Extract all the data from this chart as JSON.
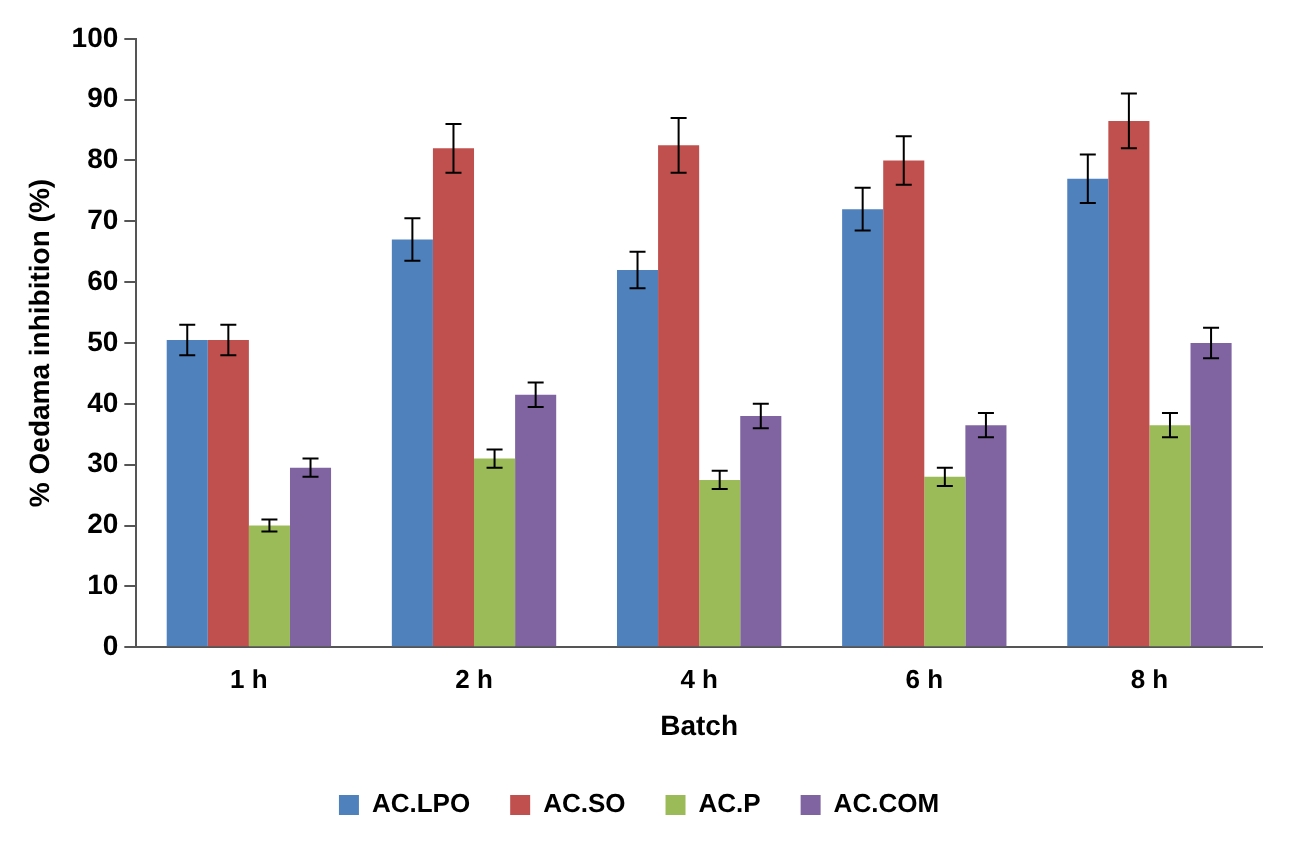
{
  "chart_data": {
    "type": "bar",
    "xlabel": "Batch",
    "ylabel": "% Oedama inhibition (%)",
    "categories": [
      "1 h",
      "2 h",
      "4 h",
      "6 h",
      "8 h"
    ],
    "series": [
      {
        "name": "AC.LPO",
        "color": "#4f81bd",
        "values": [
          50.5,
          67,
          62,
          72,
          77
        ],
        "errors": [
          2.5,
          3.5,
          3,
          3.5,
          4
        ]
      },
      {
        "name": "AC.SO",
        "color": "#c0504d",
        "values": [
          50.5,
          82,
          82.5,
          80,
          86.5
        ],
        "errors": [
          2.5,
          4,
          4.5,
          4,
          4.5
        ]
      },
      {
        "name": "AC.P",
        "color": "#9bbb59",
        "values": [
          20,
          31,
          27.5,
          28,
          36.5
        ],
        "errors": [
          1,
          1.5,
          1.5,
          1.5,
          2
        ]
      },
      {
        "name": "AC.COM",
        "color": "#8064a2",
        "values": [
          29.5,
          41.5,
          38,
          36.5,
          50
        ],
        "errors": [
          1.5,
          2,
          2,
          2,
          2.5
        ]
      }
    ],
    "ylim": [
      0,
      100
    ],
    "yticks": [
      0,
      10,
      20,
      30,
      40,
      50,
      60,
      70,
      80,
      90,
      100
    ],
    "grid": false,
    "legend": "bottom"
  }
}
